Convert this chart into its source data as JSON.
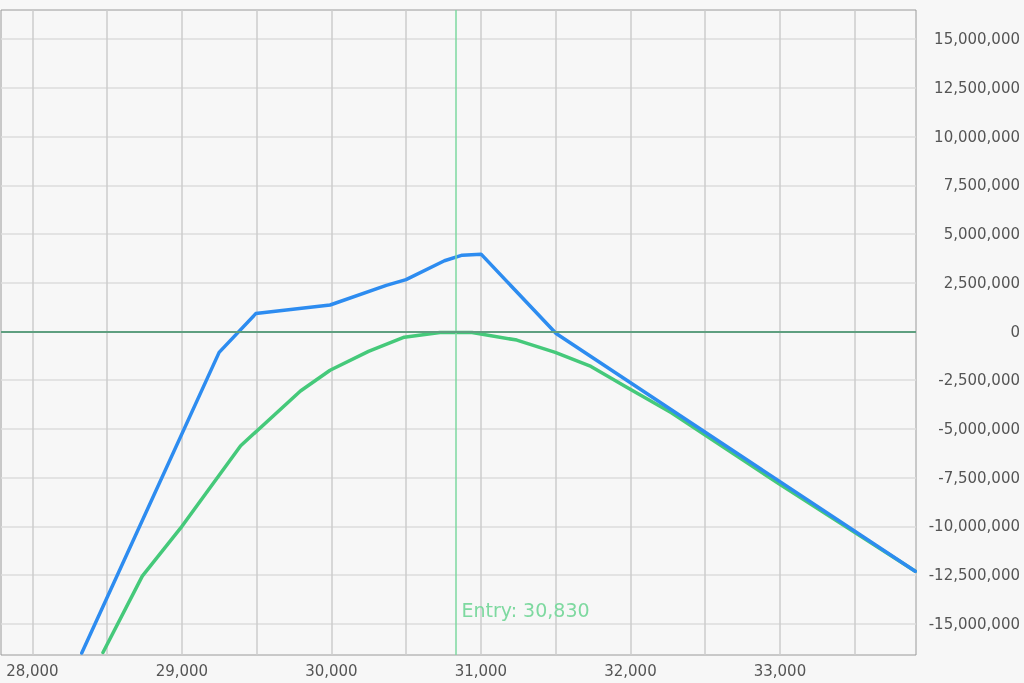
{
  "chart_data": {
    "type": "line",
    "marker": "none",
    "line_style": "solid",
    "grid": true,
    "xlim": [
      27790,
      33910
    ],
    "ylim": [
      -16600000,
      16500000
    ],
    "xticks": [
      {
        "value": 28000,
        "label": "28,000"
      },
      {
        "value": 28500,
        "label": null
      },
      {
        "value": 29000,
        "label": "29,000"
      },
      {
        "value": 29500,
        "label": null
      },
      {
        "value": 30000,
        "label": "30,000"
      },
      {
        "value": 30500,
        "label": null
      },
      {
        "value": 31000,
        "label": "31,000"
      },
      {
        "value": 31500,
        "label": null
      },
      {
        "value": 32000,
        "label": "32,000"
      },
      {
        "value": 32500,
        "label": null
      },
      {
        "value": 33000,
        "label": "33,000"
      },
      {
        "value": 33500,
        "label": null
      }
    ],
    "yticks": [
      {
        "value": -15000000,
        "label": "-15,000,000"
      },
      {
        "value": -12500000,
        "label": "-12,500,000"
      },
      {
        "value": -10000000,
        "label": "-10,000,000"
      },
      {
        "value": -7500000,
        "label": "-7,500,000"
      },
      {
        "value": -5000000,
        "label": "-5,000,000"
      },
      {
        "value": -2500000,
        "label": "-2,500,000"
      },
      0,
      {
        "value": 2500000,
        "label": "2,500,000"
      },
      {
        "value": 5000000,
        "label": "5,000,000"
      },
      {
        "value": 7500000,
        "label": "7,500,000"
      },
      {
        "value": 10000000,
        "label": "10,000,000"
      },
      {
        "value": 12500000,
        "label": "12,500,000"
      },
      {
        "value": 15000000,
        "label": "15,000,000"
      }
    ],
    "ref_lines": [
      {
        "axis": "x",
        "value": 30830,
        "label": "Entry: 30,830",
        "color": "#7ed9a0"
      },
      {
        "axis": "y",
        "value": 0,
        "color": "#5f9f80"
      }
    ],
    "series": [
      {
        "color": "#45c97a",
        "x": [
          28472,
          28735,
          28992,
          29393,
          29793,
          29991,
          30248,
          30487,
          30726,
          30941,
          31240,
          31497,
          31736,
          31975,
          32274,
          32991,
          33905
        ],
        "values": [
          -16470000,
          -12550000,
          -10080000,
          -5860000,
          -3050000,
          -1990000,
          -1020000,
          -290000,
          -50000,
          -50000,
          -440000,
          -1070000,
          -1790000,
          -2860000,
          -4170000,
          -7800000,
          -12300000
        ]
      },
      {
        "color": "#2d8cf0",
        "x": [
          28330,
          29249,
          29494,
          29991,
          30367,
          30499,
          30756,
          30875,
          31001,
          31503,
          33905
        ],
        "values": [
          -16500000,
          -1070000,
          920000,
          1360000,
          2370000,
          2660000,
          3630000,
          3920000,
          3970000,
          -100000,
          -12300000
        ]
      }
    ]
  }
}
